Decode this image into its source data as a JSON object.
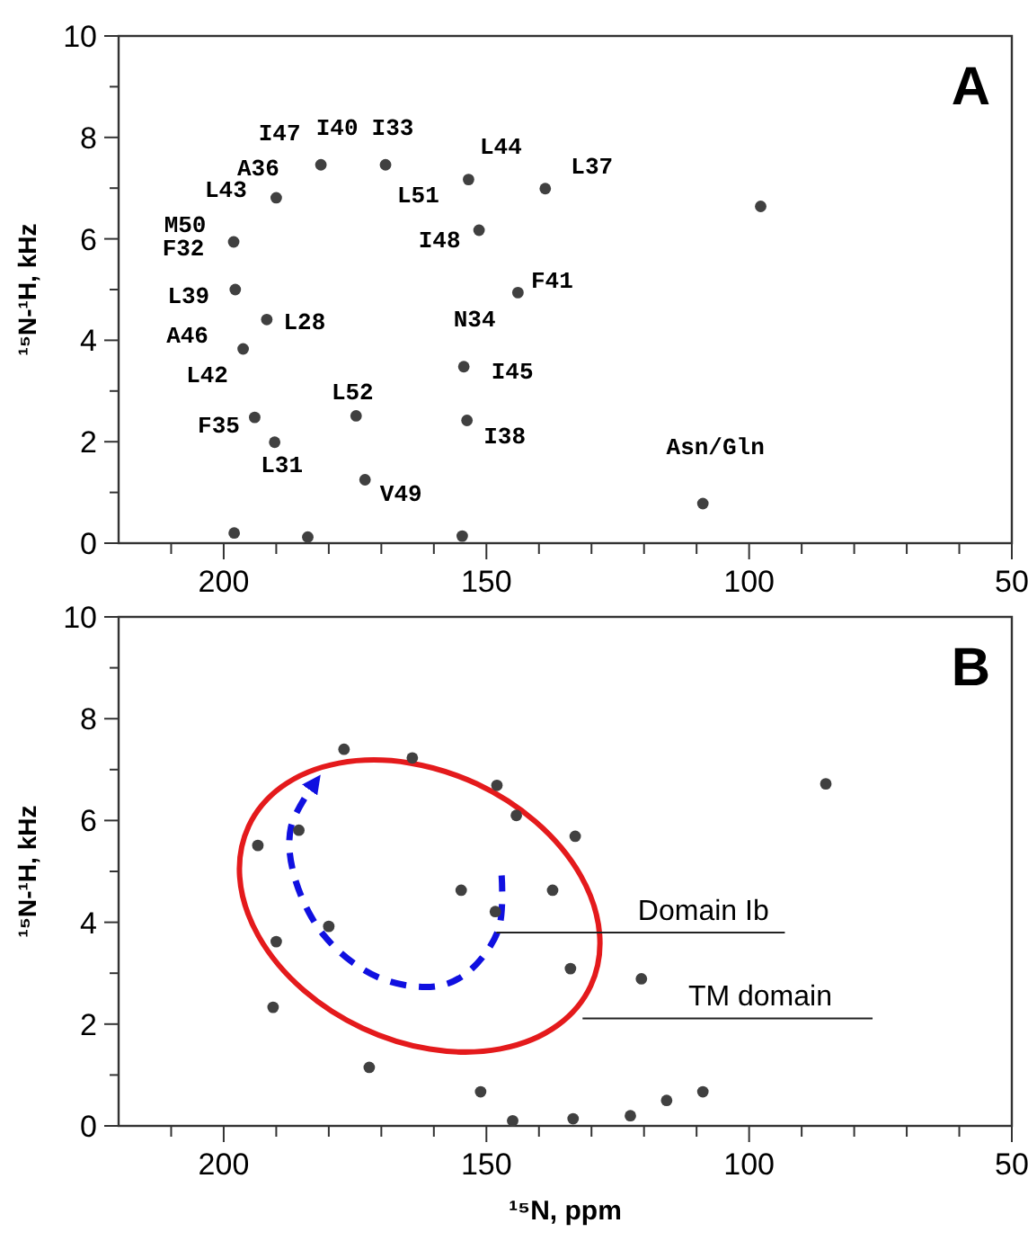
{
  "chart_data": [
    {
      "type": "scatter",
      "ylabel": "¹⁵N-¹H, kHz",
      "xlim": [
        220,
        50
      ],
      "ylim": [
        0,
        10
      ],
      "xticks": [
        {
          "value": 210,
          "label": null
        },
        200,
        {
          "value": 190,
          "label": null
        },
        {
          "value": 180,
          "label": null
        },
        {
          "value": 170,
          "label": null
        },
        {
          "value": 160,
          "label": null
        },
        150,
        {
          "value": 140,
          "label": null
        },
        {
          "value": 130,
          "label": null
        },
        {
          "value": 120,
          "label": null
        },
        {
          "value": 110,
          "label": null
        },
        100,
        {
          "value": 90,
          "label": null
        },
        {
          "value": 80,
          "label": null
        },
        {
          "value": 70,
          "label": null
        },
        {
          "value": 60,
          "label": null
        },
        50
      ],
      "yticks": [
        0,
        {
          "value": 1,
          "label": null
        },
        2,
        {
          "value": 3,
          "label": null
        },
        4,
        {
          "value": 5,
          "label": null
        },
        6,
        {
          "value": 7,
          "label": null
        },
        8,
        {
          "value": 9,
          "label": null
        },
        10
      ],
      "marker": "circle",
      "legend": false,
      "grid": false,
      "series": [
        {
          "color": "#404040",
          "x": [
            181.5,
            169.2,
            153.4,
            138.8,
            190.0,
            151.4,
            198.1,
            197.8,
            191.8,
            196.3,
            144.0,
            154.3,
            153.7,
            174.8,
            194.1,
            190.3,
            173.1,
            108.8,
            97.8,
            154.6,
            198.0,
            184.0
          ],
          "values": [
            7.46,
            7.46,
            7.17,
            6.99,
            6.81,
            6.17,
            5.94,
            5.0,
            4.41,
            3.83,
            4.94,
            3.48,
            2.42,
            2.51,
            2.48,
            1.99,
            1.25,
            0.78,
            6.64,
            0.14,
            0.2,
            0.12
          ]
        }
      ],
      "annotations": [
        "A",
        {
          "text": "I47",
          "x": 181.5,
          "y": 7.46
        },
        {
          "text": "I40",
          "x": 181.5,
          "y": 7.46
        },
        {
          "text": "I33",
          "x": 169.2,
          "y": 7.46
        },
        {
          "text": "L44",
          "x": 153.4,
          "y": 7.17
        },
        {
          "text": "L37",
          "x": 138.8,
          "y": 6.99
        },
        {
          "text": "A36",
          "x": 190.0,
          "y": 6.81
        },
        {
          "text": "L43",
          "x": 190.0,
          "y": 6.81
        },
        {
          "text": "L51",
          "x": 153.4,
          "y": 7.17
        },
        {
          "text": "M50",
          "x": 198.1,
          "y": 5.94
        },
        {
          "text": "F32",
          "x": 198.1,
          "y": 5.94
        },
        {
          "text": "I48",
          "x": 151.4,
          "y": 6.17
        },
        {
          "text": "F41",
          "x": 144.0,
          "y": 4.94
        },
        {
          "text": "L39",
          "x": 197.8,
          "y": 5.0
        },
        {
          "text": "L28",
          "x": 191.8,
          "y": 4.41
        },
        {
          "text": "N34",
          "x": 154.3,
          "y": 3.48
        },
        {
          "text": "A46",
          "x": 196.3,
          "y": 3.83
        },
        {
          "text": "I45",
          "x": 154.3,
          "y": 3.48
        },
        {
          "text": "L42",
          "x": 196.3,
          "y": 3.83
        },
        {
          "text": "L52",
          "x": 174.8,
          "y": 2.51
        },
        {
          "text": "F35",
          "x": 194.1,
          "y": 2.48
        },
        {
          "text": "I38",
          "x": 153.7,
          "y": 2.42
        },
        {
          "text": "L31",
          "x": 190.3,
          "y": 1.99
        },
        {
          "text": "V49",
          "x": 173.1,
          "y": 1.25
        },
        {
          "text": "Asn/Gln",
          "x": 108.8,
          "y": 0.78
        }
      ]
    },
    {
      "type": "scatter",
      "xlabel": "¹⁵N, ppm",
      "ylabel": "¹⁵N-¹H, kHz",
      "xlim": [
        220,
        50
      ],
      "ylim": [
        0,
        10
      ],
      "xticks": [
        {
          "value": 210,
          "label": null
        },
        200,
        {
          "value": 190,
          "label": null
        },
        {
          "value": 180,
          "label": null
        },
        {
          "value": 170,
          "label": null
        },
        {
          "value": 160,
          "label": null
        },
        150,
        {
          "value": 140,
          "label": null
        },
        {
          "value": 130,
          "label": null
        },
        {
          "value": 120,
          "label": null
        },
        {
          "value": 110,
          "label": null
        },
        100,
        {
          "value": 90,
          "label": null
        },
        {
          "value": 80,
          "label": null
        },
        {
          "value": 70,
          "label": null
        },
        {
          "value": 60,
          "label": null
        },
        50
      ],
      "yticks": [
        0,
        {
          "value": 1,
          "label": null
        },
        2,
        {
          "value": 3,
          "label": null
        },
        4,
        {
          "value": 5,
          "label": null
        },
        6,
        {
          "value": 7,
          "label": null
        },
        8,
        {
          "value": 9,
          "label": null
        },
        10
      ],
      "marker": "circle",
      "legend": false,
      "grid": false,
      "series": [
        {
          "color": "#404040",
          "x": [
            177.1,
            164.1,
            148.0,
            144.3,
            133.1,
            193.5,
            185.7,
            137.4,
            154.8,
            148.3,
            180.0,
            190.0,
            134.0,
            120.5,
            190.6,
            172.3,
            151.1,
            115.7,
            108.8,
            85.4,
            145.0,
            133.5,
            122.6
          ],
          "values": [
            7.4,
            7.23,
            6.69,
            6.1,
            5.69,
            5.51,
            5.81,
            4.63,
            4.63,
            4.21,
            3.92,
            3.62,
            3.09,
            2.89,
            2.33,
            1.15,
            0.67,
            0.5,
            0.67,
            6.72,
            0.1,
            0.14,
            0.2
          ]
        }
      ],
      "annotations": [
        "B",
        "Domain Ib",
        "TM domain"
      ]
    }
  ]
}
